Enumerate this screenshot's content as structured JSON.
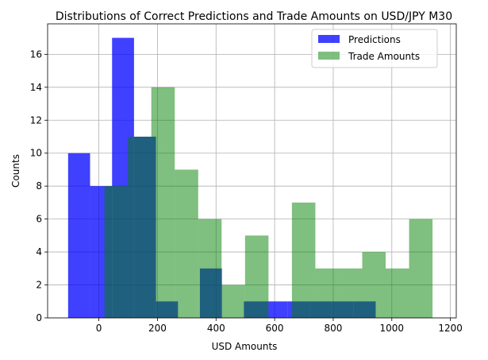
{
  "chart_data": {
    "type": "bar",
    "title": "Distributions of Correct Predictions and Trade Amounts on USD/JPY M30",
    "xlabel": "USD Amounts",
    "ylabel": "Counts",
    "xlim": [
      -175,
      1220
    ],
    "ylim": [
      0,
      17.85
    ],
    "xticks": [
      0,
      200,
      400,
      600,
      800,
      1000,
      1200
    ],
    "yticks": [
      0,
      2,
      4,
      6,
      8,
      10,
      12,
      14,
      16
    ],
    "grid": true,
    "legend_position": "upper right",
    "series": [
      {
        "name": "Predictions",
        "color": "#0000ff",
        "opacity": 0.75,
        "bins": [
          {
            "x0": -105,
            "x1": -30,
            "count": 10
          },
          {
            "x0": -30,
            "x1": 45,
            "count": 8
          },
          {
            "x0": 45,
            "x1": 120,
            "count": 17
          },
          {
            "x0": 120,
            "x1": 195,
            "count": 11
          },
          {
            "x0": 195,
            "x1": 270,
            "count": 1
          },
          {
            "x0": 270,
            "x1": 345,
            "count": 0
          },
          {
            "x0": 345,
            "x1": 420,
            "count": 3
          },
          {
            "x0": 420,
            "x1": 495,
            "count": 0
          },
          {
            "x0": 495,
            "x1": 570,
            "count": 1
          },
          {
            "x0": 570,
            "x1": 645,
            "count": 1
          },
          {
            "x0": 645,
            "x1": 720,
            "count": 1
          },
          {
            "x0": 720,
            "x1": 795,
            "count": 1
          },
          {
            "x0": 795,
            "x1": 870,
            "count": 1
          },
          {
            "x0": 870,
            "x1": 945,
            "count": 1
          }
        ]
      },
      {
        "name": "Trade Amounts",
        "color": "#008000",
        "opacity": 0.5,
        "bins": [
          {
            "x0": 19,
            "x1": 99,
            "count": 8
          },
          {
            "x0": 99,
            "x1": 179,
            "count": 11
          },
          {
            "x0": 179,
            "x1": 259,
            "count": 14
          },
          {
            "x0": 259,
            "x1": 339,
            "count": 9
          },
          {
            "x0": 339,
            "x1": 419,
            "count": 6
          },
          {
            "x0": 419,
            "x1": 499,
            "count": 2
          },
          {
            "x0": 499,
            "x1": 579,
            "count": 5
          },
          {
            "x0": 579,
            "x1": 659,
            "count": 0
          },
          {
            "x0": 659,
            "x1": 739,
            "count": 7
          },
          {
            "x0": 739,
            "x1": 819,
            "count": 3
          },
          {
            "x0": 819,
            "x1": 899,
            "count": 3
          },
          {
            "x0": 899,
            "x1": 979,
            "count": 4
          },
          {
            "x0": 979,
            "x1": 1059,
            "count": 3
          },
          {
            "x0": 1059,
            "x1": 1139,
            "count": 6
          }
        ]
      }
    ]
  }
}
